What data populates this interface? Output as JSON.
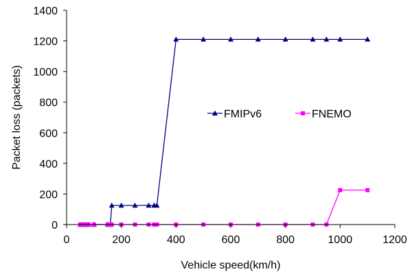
{
  "chart_data": {
    "type": "line",
    "title": "",
    "xlabel": "Vehicle speed(km/h)",
    "ylabel": "Packet loss (packets)",
    "xlim": [
      0,
      1200
    ],
    "ylim": [
      0,
      1400
    ],
    "xticks": [
      0,
      200,
      400,
      600,
      800,
      1000,
      1200
    ],
    "yticks": [
      0,
      200,
      400,
      600,
      800,
      1000,
      1200,
      1400
    ],
    "grid": false,
    "legend_position": "right-middle",
    "series": [
      {
        "name": "FMIPv6",
        "color": "#000080",
        "marker": "triangle",
        "x": [
          50,
          60,
          70,
          80,
          100,
          150,
          160,
          165,
          200,
          250,
          300,
          320,
          330,
          400,
          500,
          600,
          700,
          800,
          900,
          950,
          1000,
          1100
        ],
        "y": [
          0,
          0,
          0,
          0,
          0,
          0,
          0,
          125,
          125,
          125,
          125,
          125,
          125,
          1210,
          1210,
          1210,
          1210,
          1210,
          1210,
          1210,
          1210,
          1210
        ]
      },
      {
        "name": "FNEMO",
        "color": "#FF00FF",
        "marker": "square",
        "x": [
          50,
          60,
          70,
          80,
          100,
          150,
          160,
          165,
          200,
          250,
          300,
          320,
          330,
          400,
          500,
          600,
          700,
          800,
          900,
          950,
          1000,
          1100
        ],
        "y": [
          0,
          0,
          0,
          0,
          0,
          0,
          0,
          0,
          0,
          0,
          0,
          0,
          0,
          0,
          0,
          0,
          0,
          0,
          0,
          0,
          225,
          225
        ]
      }
    ]
  }
}
